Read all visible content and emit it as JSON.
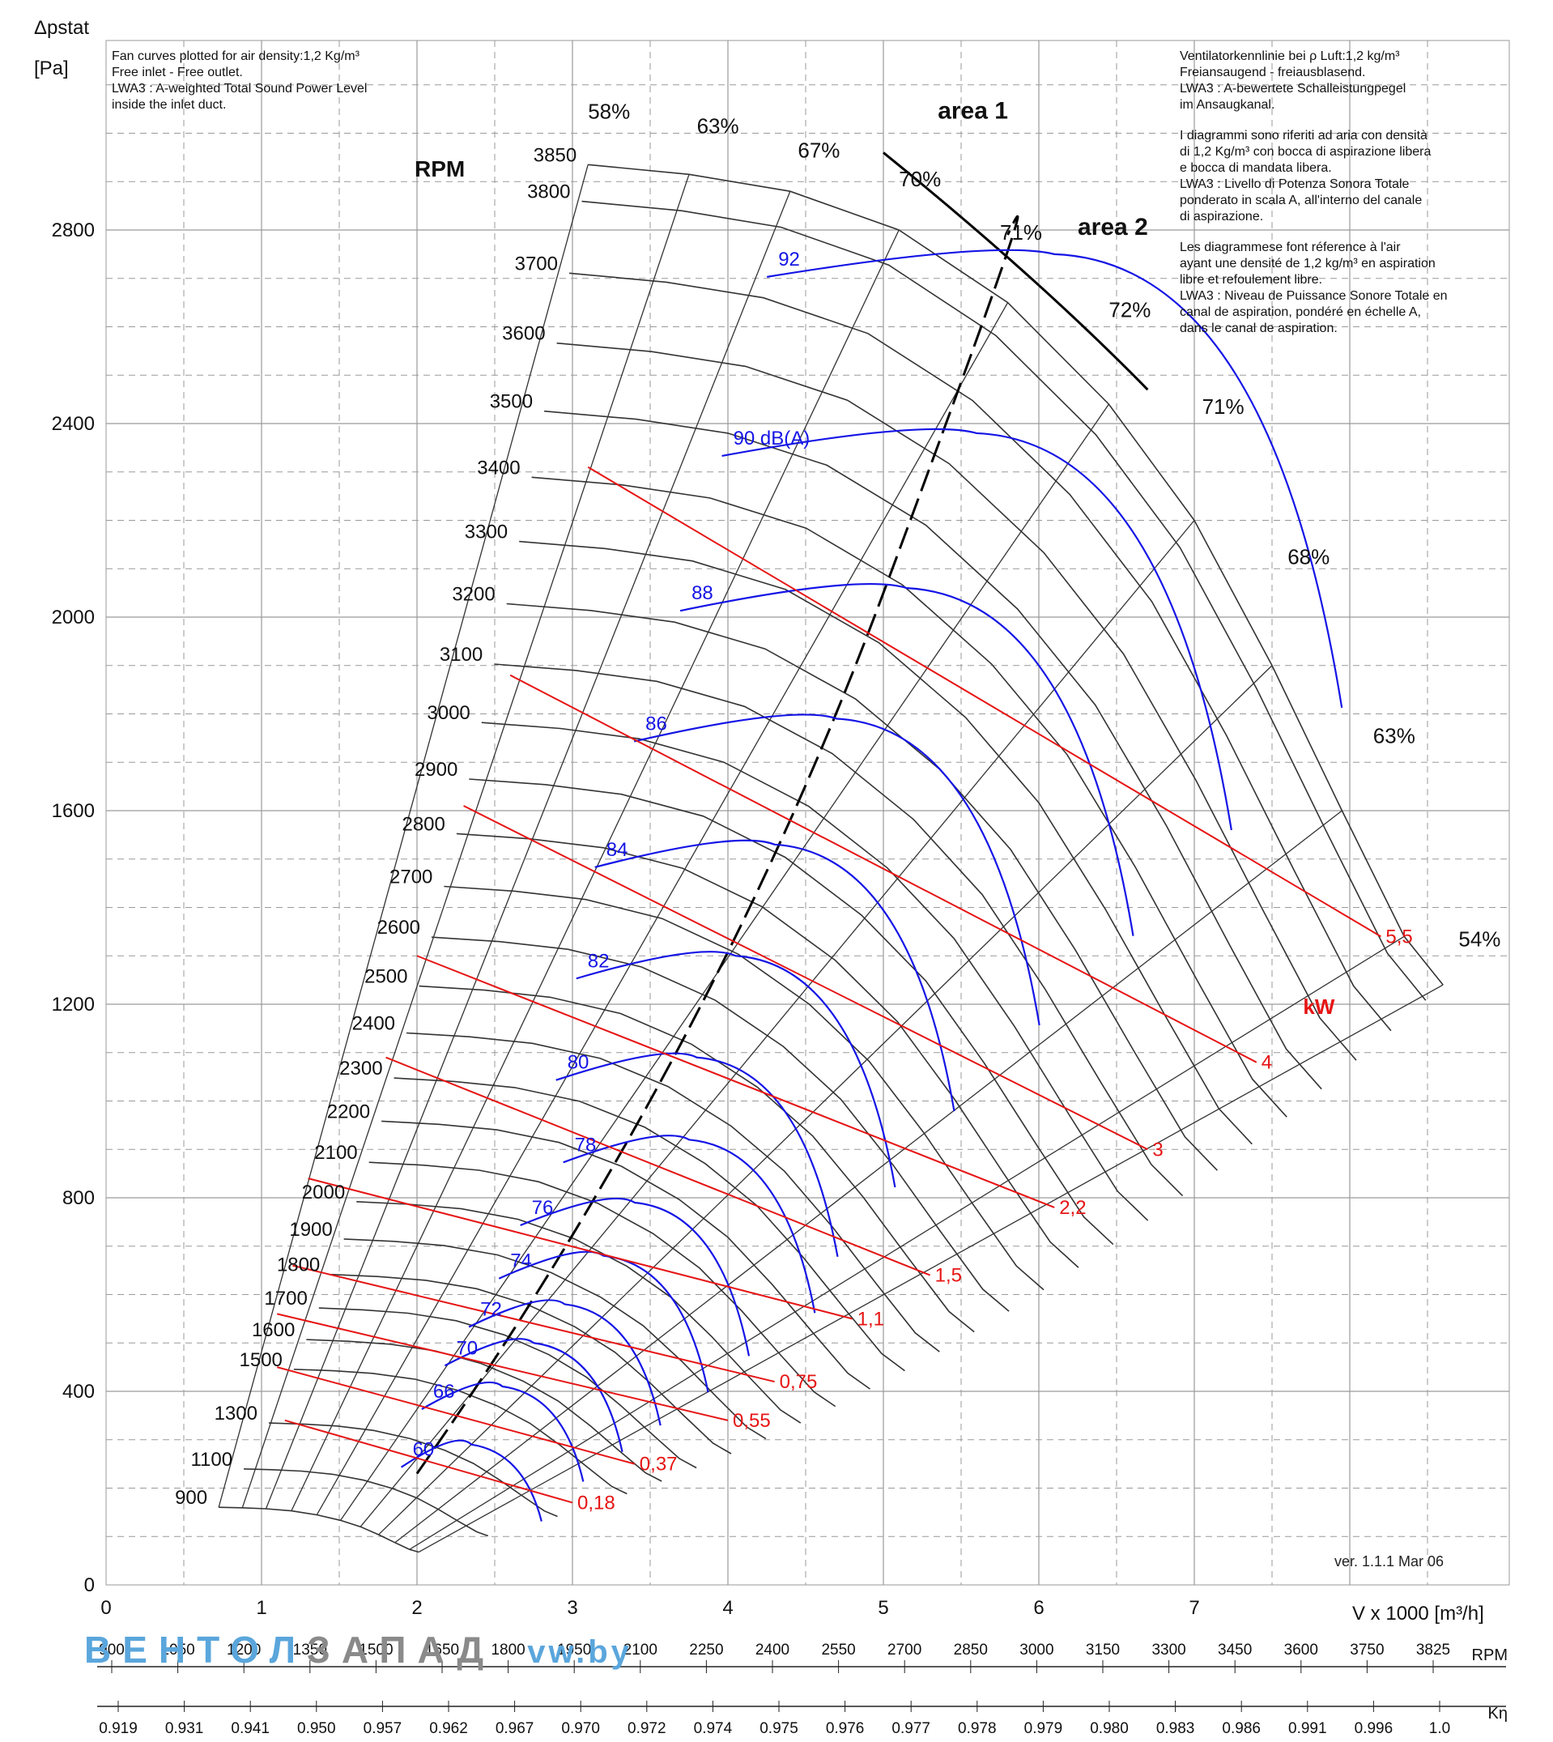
{
  "header": {
    "y_axis_label": "Δpstat",
    "y_axis_unit": "[Pa]",
    "x_axis_label": "V x 1000 [m³/h]",
    "rpm_title": "RPM",
    "kw_label": "kW",
    "area1": "area 1",
    "area2": "area 2",
    "version": "ver. 1.1.1 Mar 06",
    "brand_a": "ВЕНТОЛ",
    "brand_b": "ЗАПАД",
    "brand_c": "vw.by",
    "rpm_axis_label": "RPM",
    "keta_axis_label": "Kη"
  },
  "notes_en": [
    "Fan curves plotted for air density:1,2 Kg/m³",
    "Free inlet - Free outlet.",
    "LWA3 : A-weighted Total Sound Power Level",
    "inside the inlet duct."
  ],
  "notes_multi": [
    "Ventilatorkennlinie bei ρ Luft:1,2 kg/m³",
    "Freiansaugend - freiausblasend.",
    "LWA3 : A-bewertete Schalleistungpegel",
    "im Ansaugkanal.",
    "",
    "I diagrammi sono riferiti ad aria con densità",
    "di 1,2 Kg/m³ con bocca di aspirazione libera",
    "e bocca di mandata libera.",
    "LWA3 : Livello di Potenza Sonora Totale",
    "ponderato in scala A, all'interno del canale",
    "di aspirazione.",
    "",
    "Les diagrammese font réference à l'air",
    "ayant une densité de 1,2 kg/m³ en aspiration",
    "libre et refoulement libre.",
    "LWA3 : Niveau de Puissance Sonore Totale en",
    "canal de aspiration, pondéré en échelle A,",
    "dans le canal de aspiration."
  ],
  "colors": {
    "grid": "#9a9a9a",
    "curve": "#333333",
    "sound": "#1414e6",
    "power": "#e61414",
    "text": "#111111"
  },
  "chart_data": {
    "type": "line",
    "xlabel": "V x 1000 [m³/h]",
    "ylabel": "Δpstat [Pa]",
    "xlim": [
      0,
      9
    ],
    "ylim": [
      0,
      3200
    ],
    "x_ticks": [
      "0",
      "1",
      "2",
      "3",
      "4",
      "5",
      "6",
      "7"
    ],
    "y_ticks": [
      "0",
      "400",
      "800",
      "1200",
      "1600",
      "2000",
      "2400",
      "2800"
    ],
    "grid": true,
    "rpm_speeds": [
      {
        "label": "3850",
        "rpm": 3850
      },
      {
        "label": "3800",
        "rpm": 3800
      },
      {
        "label": "3700",
        "rpm": 3700
      },
      {
        "label": "3600",
        "rpm": 3600
      },
      {
        "label": "3500",
        "rpm": 3500
      },
      {
        "label": "3400",
        "rpm": 3400
      },
      {
        "label": "3300",
        "rpm": 3300
      },
      {
        "label": "3200",
        "rpm": 3200
      },
      {
        "label": "3100",
        "rpm": 3100
      },
      {
        "label": "3000",
        "rpm": 3000
      },
      {
        "label": "2900",
        "rpm": 2900
      },
      {
        "label": "2800",
        "rpm": 2800
      },
      {
        "label": "2700",
        "rpm": 2700
      },
      {
        "label": "2600",
        "rpm": 2600
      },
      {
        "label": "2500",
        "rpm": 2500
      },
      {
        "label": "2400",
        "rpm": 2400
      },
      {
        "label": "2300",
        "rpm": 2300
      },
      {
        "label": "2200",
        "rpm": 2200
      },
      {
        "label": "2100",
        "rpm": 2100
      },
      {
        "label": "2000",
        "rpm": 2000
      },
      {
        "label": "1900",
        "rpm": 1900
      },
      {
        "label": "1800",
        "rpm": 1800
      },
      {
        "label": "1700",
        "rpm": 1700
      },
      {
        "label": "1600",
        "rpm": 1600
      },
      {
        "label": "1500",
        "rpm": 1500
      },
      {
        "label": "1300",
        "rpm": 1300
      },
      {
        "label": "1100",
        "rpm": 1100
      },
      {
        "label": "900",
        "rpm": 900
      }
    ],
    "reference_curve": {
      "rpm": 3850,
      "x": [
        3.1,
        3.75,
        4.4,
        5.1,
        5.8,
        6.45,
        7.0,
        7.5,
        7.95,
        8.35,
        8.6
      ],
      "y": [
        2935,
        2915,
        2880,
        2800,
        2650,
        2440,
        2200,
        1900,
        1600,
        1340,
        1240
      ]
    },
    "efficiency_labels": [
      "58%",
      "63%",
      "67%",
      "70%",
      "71%",
      "72%",
      "71%",
      "68%",
      "63%",
      "54%"
    ],
    "sound_levels_dBA": [
      {
        "label": "60",
        "peak_x": 2.35,
        "peak_y": 290
      },
      {
        "label": "66",
        "peak_x": 2.55,
        "peak_y": 410
      },
      {
        "label": "70",
        "peak_x": 2.75,
        "peak_y": 500
      },
      {
        "label": "72",
        "peak_x": 2.95,
        "peak_y": 580
      },
      {
        "label": "74",
        "peak_x": 3.2,
        "peak_y": 680
      },
      {
        "label": "76",
        "peak_x": 3.4,
        "peak_y": 790
      },
      {
        "label": "78",
        "peak_x": 3.75,
        "peak_y": 920
      },
      {
        "label": "80",
        "peak_x": 3.8,
        "peak_y": 1090
      },
      {
        "label": "82",
        "peak_x": 4.05,
        "peak_y": 1300
      },
      {
        "label": "84",
        "peak_x": 4.3,
        "peak_y": 1530
      },
      {
        "label": "86",
        "peak_x": 4.7,
        "peak_y": 1790
      },
      {
        "label": "88",
        "peak_x": 5.15,
        "peak_y": 2060
      },
      {
        "label": "90 dB(A)",
        "peak_x": 5.6,
        "peak_y": 2380
      },
      {
        "label": "92",
        "peak_x": 6.1,
        "peak_y": 2750
      }
    ],
    "power_kW": [
      {
        "label": "0,18",
        "start_x": 1.15,
        "start_y": 340,
        "end_x": 3.0,
        "end_y": 170
      },
      {
        "label": "0,37",
        "start_x": 1.1,
        "start_y": 450,
        "end_x": 3.4,
        "end_y": 250
      },
      {
        "label": "0,55",
        "start_x": 1.1,
        "start_y": 560,
        "end_x": 4.0,
        "end_y": 340
      },
      {
        "label": "0,75",
        "start_x": 1.2,
        "start_y": 660,
        "end_x": 4.3,
        "end_y": 420
      },
      {
        "label": "1,1",
        "start_x": 1.3,
        "start_y": 840,
        "end_x": 4.8,
        "end_y": 550
      },
      {
        "label": "1,5",
        "start_x": 1.8,
        "start_y": 1090,
        "end_x": 5.3,
        "end_y": 640
      },
      {
        "label": "2,2",
        "start_x": 2.0,
        "start_y": 1300,
        "end_x": 6.1,
        "end_y": 780
      },
      {
        "label": "3",
        "start_x": 2.3,
        "start_y": 1610,
        "end_x": 6.7,
        "end_y": 900
      },
      {
        "label": "4",
        "start_x": 2.6,
        "start_y": 1880,
        "end_x": 7.4,
        "end_y": 1080
      },
      {
        "label": "5,5",
        "start_x": 3.1,
        "start_y": 2310,
        "end_x": 8.2,
        "end_y": 1340
      }
    ],
    "rpm_axis": [
      "900",
      "1050",
      "1200",
      "1350",
      "1500",
      "1650",
      "1800",
      "1950",
      "2100",
      "2250",
      "2400",
      "2550",
      "2700",
      "2850",
      "3000",
      "3150",
      "3300",
      "3450",
      "3600",
      "3750",
      "3825"
    ],
    "keta_axis": [
      "0.919",
      "0.931",
      "0.941",
      "0.950",
      "0.957",
      "0.962",
      "0.967",
      "0.970",
      "0.972",
      "0.974",
      "0.975",
      "0.976",
      "0.977",
      "0.978",
      "0.979",
      "0.980",
      "0.983",
      "0.986",
      "0.991",
      "0.996",
      "1.0"
    ]
  }
}
